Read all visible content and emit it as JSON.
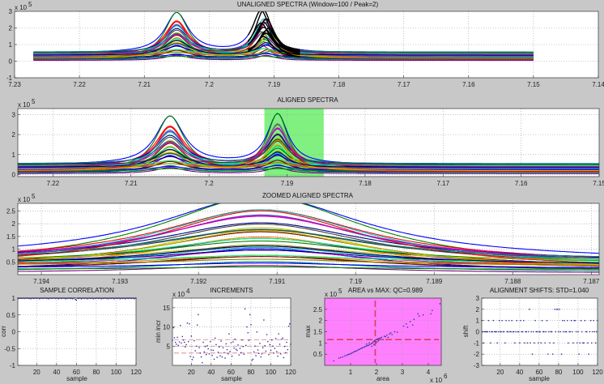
{
  "chart_data": [
    {
      "id": "unaligned",
      "type": "line",
      "title": "UNALIGNED SPECTRA (Window=100 / Peak=2)",
      "xlim": [
        7.23,
        7.14
      ],
      "ylim": [
        -1,
        3
      ],
      "x_reversed": true,
      "grid": true,
      "xticks": [
        "7.23",
        "7.22",
        "7.21",
        "7.2",
        "7.19",
        "7.18",
        "7.17",
        "7.16",
        "7.15",
        "7.14"
      ],
      "xtick_values": [
        7.23,
        7.22,
        7.21,
        7.2,
        7.19,
        7.18,
        7.17,
        7.16,
        7.15,
        7.14
      ],
      "yticks": [
        "-1",
        "0",
        "1",
        "2",
        "3"
      ],
      "ytick_values": [
        -1,
        0,
        1,
        2,
        3
      ],
      "y_multiplier": {
        "base": "x 10",
        "exp": "5"
      },
      "data_range": [
        7.2271,
        7.15
      ],
      "highlight_color": "#000000"
    },
    {
      "id": "aligned",
      "type": "line",
      "title": "ALIGNED SPECTRA",
      "xlim": [
        7.2245,
        7.15
      ],
      "ylim": [
        -0.1,
        3.3
      ],
      "x_reversed": true,
      "grid": true,
      "xticks": [
        "7.22",
        "7.21",
        "7.2",
        "7.19",
        "7.18",
        "7.17",
        "7.16",
        "7.15"
      ],
      "xtick_values": [
        7.22,
        7.21,
        7.2,
        7.19,
        7.18,
        7.17,
        7.16,
        7.15
      ],
      "yticks": [
        "0",
        "1",
        "2",
        "3"
      ],
      "ytick_values": [
        0,
        1,
        2,
        3
      ],
      "y_multiplier": {
        "base": "x 10",
        "exp": "5"
      },
      "data_range": [
        7.2245,
        7.15
      ],
      "window": [
        7.1929,
        7.1853
      ],
      "window_color": "#80f080"
    },
    {
      "id": "zoomed",
      "type": "line",
      "title": "ZOOMED ALIGNED SPECTRA",
      "xlim": [
        7.1943,
        7.1869
      ],
      "ylim": [
        0,
        2.8
      ],
      "x_reversed": true,
      "grid": true,
      "xticks": [
        "7.194",
        "7.193",
        "7.192",
        "7.191",
        "7.19",
        "7.189",
        "7.188",
        "7.187"
      ],
      "xtick_values": [
        7.194,
        7.193,
        7.192,
        7.191,
        7.19,
        7.189,
        7.188,
        7.187
      ],
      "yticks": [
        "0.5",
        "1",
        "1.5",
        "2",
        "2.5"
      ],
      "ytick_values": [
        0.5,
        1,
        1.5,
        2,
        2.5
      ],
      "y_multiplier": {
        "base": "x 10",
        "exp": "5"
      },
      "data_range": [
        7.1943,
        7.1869
      ]
    },
    {
      "id": "correlation",
      "type": "scatter",
      "title": "SAMPLE CORRELATION",
      "xlabel": "sample",
      "ylabel": "corr",
      "xlim": [
        1,
        120
      ],
      "ylim": [
        -1,
        1
      ],
      "grid": true,
      "xticks": [
        "20",
        "40",
        "60",
        "80",
        "100",
        "120"
      ],
      "xtick_values": [
        20,
        40,
        60,
        80,
        100,
        120
      ],
      "yticks": [
        "-1",
        "-0.5",
        "0",
        "0.5",
        "1"
      ],
      "ytick_values": [
        -1,
        -0.5,
        0,
        0.5,
        1
      ],
      "color": "#3030a0",
      "values": [
        1,
        0.99,
        1,
        1,
        0.99,
        1,
        1,
        0.99,
        1,
        1,
        1,
        0.99,
        1,
        0.98,
        1,
        1,
        0.99,
        1,
        1,
        0.99,
        1,
        1,
        0.98,
        1,
        1,
        0.99,
        1,
        1,
        1,
        0.99,
        1,
        0.98,
        1,
        1,
        0.99,
        1,
        1,
        1,
        0.99,
        1,
        1,
        0.98,
        1,
        1,
        0.99,
        1,
        1,
        1,
        0.98,
        1,
        0.99,
        1,
        1,
        0.99,
        1,
        0.98,
        1,
        1,
        0.96,
        0.94,
        1,
        0.99,
        1,
        1,
        0.98,
        1,
        1,
        0.99,
        1,
        1,
        0.98,
        1,
        1,
        0.99,
        1,
        1,
        0.98,
        1,
        0.99,
        1,
        1,
        0.99,
        1,
        1,
        0.98,
        1,
        0.99,
        1,
        1,
        0.99,
        1,
        0.98,
        1,
        1,
        0.99,
        1,
        1,
        0.98,
        1,
        1,
        0.99,
        1,
        1,
        0.98,
        1,
        0.99,
        1,
        1,
        0.98,
        1,
        1,
        0.99,
        1,
        1,
        0.99,
        1,
        1,
        0.98,
        1,
        1
      ]
    },
    {
      "id": "increments",
      "type": "scatter",
      "title": "INCREMENTS",
      "xlabel": "sample",
      "ylabel": "min incr",
      "xlim": [
        1,
        120
      ],
      "ylim": [
        0,
        17.5
      ],
      "grid": true,
      "xticks": [
        "20",
        "40",
        "60",
        "80",
        "100",
        "120"
      ],
      "xtick_values": [
        20,
        40,
        60,
        80,
        100,
        120
      ],
      "yticks": [
        "5",
        "10",
        "15"
      ],
      "ytick_values": [
        5,
        10,
        15
      ],
      "y_multiplier": {
        "base": "x 10",
        "exp": "4"
      },
      "color": "#3030a0",
      "reference_lines": [
        3.2,
        5.0,
        6.7
      ],
      "reference_color": "#d08080",
      "values": [
        6.5,
        9.8,
        7.2,
        6.0,
        5.5,
        7.3,
        5.2,
        6.1,
        10.4,
        5.8,
        7.5,
        6.6,
        6.0,
        4.8,
        5.4,
        11.0,
        6.2,
        10.8,
        2.3,
        7.6,
        1.5,
        2.1,
        6.4,
        3.8,
        5.0,
        10.5,
        13.2,
        4.6,
        3.2,
        2.2,
        0.7,
        6.0,
        3.5,
        4.9,
        2.8,
        5.1,
        4.3,
        3.0,
        6.2,
        4.0,
        2.6,
        3.9,
        1.6,
        7.1,
        5.4,
        2.1,
        3.4,
        4.8,
        2.5,
        6.3,
        2.2,
        4.6,
        3.3,
        1.9,
        5.6,
        4.1,
        3.0,
        8.2,
        3.6,
        5.9,
        2.4,
        6.1,
        4.5,
        6.8,
        4.2,
        3.9,
        5.3,
        2.7,
        4.4,
        3.3,
        6.6,
        4.9,
        2.9,
        14.7,
        5.2,
        10.0,
        8.5,
        6.5,
        13.2,
        10.6,
        1.3,
        1.6,
        3.5,
        5.0,
        2.5,
        8.7,
        4.0,
        3.1,
        5.7,
        2.2,
        3.0,
        4.6,
        11.8,
        5.1,
        3.7,
        8.0,
        6.2,
        2.8,
        5.4,
        3.9,
        6.6,
        5.0,
        3.2,
        4.4,
        7.0,
        3.6,
        2.4,
        8.2,
        5.5,
        3.0,
        6.8,
        7.1,
        2.0,
        4.9,
        3.3,
        6.0,
        4.1,
        10.2,
        10.8,
        5.5
      ]
    },
    {
      "id": "area-vs-max",
      "type": "scatter",
      "title": "AREA vs MAX: QC=0.989",
      "xlabel": "area",
      "ylabel": "max",
      "xlim": [
        0,
        4.5
      ],
      "ylim": [
        0,
        3
      ],
      "grid": true,
      "xticks": [
        "1",
        "2",
        "3",
        "4"
      ],
      "xtick_values": [
        1,
        2,
        3,
        4
      ],
      "yticks": [
        "0.5",
        "1",
        "1.5",
        "2",
        "2.5"
      ],
      "ytick_values": [
        0.5,
        1,
        1.5,
        2,
        2.5
      ],
      "x_multiplier": {
        "base": "x 10",
        "exp": "6"
      },
      "y_multiplier": {
        "base": "x 10",
        "exp": "5"
      },
      "background": "#ff80ff",
      "color": "#3030a0",
      "threshold_x": 1.95,
      "threshold_y": 1.15,
      "threshold_color": "#e03c64",
      "points": [
        [
          0.35,
          0.2
        ],
        [
          0.55,
          0.32
        ],
        [
          0.62,
          0.35
        ],
        [
          0.7,
          0.38
        ],
        [
          0.78,
          0.42
        ],
        [
          0.85,
          0.45
        ],
        [
          0.9,
          0.48
        ],
        [
          0.95,
          0.5
        ],
        [
          1.0,
          0.52
        ],
        [
          1.05,
          0.55
        ],
        [
          1.1,
          0.58
        ],
        [
          1.15,
          0.62
        ],
        [
          1.2,
          0.63
        ],
        [
          1.25,
          0.66
        ],
        [
          1.3,
          0.7
        ],
        [
          1.35,
          0.72
        ],
        [
          1.4,
          0.75
        ],
        [
          1.45,
          0.78
        ],
        [
          1.5,
          0.8
        ],
        [
          1.55,
          0.83
        ],
        [
          1.6,
          0.86
        ],
        [
          1.62,
          0.95
        ],
        [
          1.65,
          0.88
        ],
        [
          1.7,
          0.9
        ],
        [
          1.72,
          1.0
        ],
        [
          1.75,
          0.93
        ],
        [
          1.8,
          0.97
        ],
        [
          1.82,
          0.85
        ],
        [
          1.85,
          1.0
        ],
        [
          1.88,
          1.05
        ],
        [
          1.9,
          0.92
        ],
        [
          1.92,
          1.1
        ],
        [
          1.95,
          1.08
        ],
        [
          1.98,
          1.0
        ],
        [
          2.0,
          1.15
        ],
        [
          2.02,
          1.05
        ],
        [
          2.05,
          1.18
        ],
        [
          2.08,
          1.1
        ],
        [
          2.1,
          1.2
        ],
        [
          2.15,
          1.22
        ],
        [
          2.2,
          1.25
        ],
        [
          2.25,
          1.15
        ],
        [
          2.3,
          1.3
        ],
        [
          2.35,
          1.28
        ],
        [
          2.4,
          1.35
        ],
        [
          2.45,
          1.25
        ],
        [
          2.5,
          1.4
        ],
        [
          2.55,
          1.45
        ],
        [
          2.6,
          1.38
        ],
        [
          2.7,
          1.5
        ],
        [
          2.8,
          1.48
        ],
        [
          3.05,
          1.75
        ],
        [
          3.15,
          1.85
        ],
        [
          3.2,
          1.7
        ],
        [
          3.3,
          1.95
        ],
        [
          3.4,
          1.8
        ],
        [
          3.45,
          2.05
        ],
        [
          3.6,
          2.3
        ],
        [
          3.65,
          2.2
        ],
        [
          3.8,
          2.25
        ],
        [
          4.1,
          2.3
        ],
        [
          4.15,
          2.45
        ],
        [
          4.45,
          2.75
        ]
      ]
    },
    {
      "id": "shifts",
      "type": "scatter",
      "title": "ALIGNMENT SHIFTS: STD=1.040",
      "xlabel": "sample",
      "ylabel": "shift",
      "xlim": [
        1,
        120
      ],
      "ylim": [
        -3,
        3
      ],
      "grid": true,
      "xticks": [
        "20",
        "40",
        "60",
        "80",
        "100",
        "120"
      ],
      "xtick_values": [
        20,
        40,
        60,
        80,
        100,
        120
      ],
      "yticks": [
        "-3",
        "-2",
        "-1",
        "0",
        "1",
        "2",
        "3"
      ],
      "ytick_values": [
        -3,
        -2,
        -1,
        0,
        1,
        2,
        3
      ],
      "color": "#3030a0",
      "values": [
        1,
        0,
        -1,
        0,
        0,
        0,
        0,
        1,
        0,
        -1,
        0,
        0,
        1,
        0,
        0,
        0,
        -1,
        0,
        1,
        0,
        0,
        1,
        0,
        0,
        -1,
        1,
        0,
        0,
        1,
        0,
        0,
        1,
        0,
        0,
        -1,
        0,
        1,
        0,
        0,
        -1,
        1,
        0,
        0,
        1,
        -1,
        0,
        0,
        -1,
        0,
        2,
        -1,
        0,
        -2,
        0,
        -1,
        1,
        0,
        0,
        -1,
        0,
        0,
        -1,
        1,
        0,
        0,
        -1,
        0,
        1,
        -2,
        0,
        -1,
        0,
        0,
        -2,
        -1,
        2,
        0,
        2,
        2,
        0,
        2,
        0,
        -2,
        1,
        0,
        1,
        0,
        0,
        1,
        -1,
        0,
        0,
        1,
        0,
        -1,
        1,
        1,
        0,
        -1,
        0,
        -2,
        -1,
        1,
        0,
        -1,
        -1,
        1,
        0,
        0,
        -1,
        -2,
        0,
        1,
        -1,
        0,
        1,
        0,
        -1,
        0,
        1
      ]
    }
  ],
  "spectra": {
    "peak_centers": [
      7.205,
      7.1912
    ],
    "shift_unit": 0.0004,
    "colors": [
      "#0000ff",
      "#008000",
      "#ff0000",
      "#00bfbf",
      "#bf00bf",
      "#bfbf00",
      "#404040",
      "#000080",
      "#800000",
      "#ff8000",
      "#008080",
      "#800080",
      "#00ff80",
      "#808000"
    ],
    "series": [
      {
        "base": 0.5,
        "h1": 2.4,
        "h2": 2.5,
        "shift": 2
      },
      {
        "base": 0.2,
        "h1": 2.7,
        "h2": 2.8,
        "shift": 1
      },
      {
        "base": 0.4,
        "h1": 2.0,
        "h2": 2.1,
        "shift": 0
      },
      {
        "base": 0.3,
        "h1": 1.9,
        "h2": 2.0,
        "shift": 1
      },
      {
        "base": 0.45,
        "h1": 1.7,
        "h2": 1.8,
        "shift": 2
      },
      {
        "base": 0.1,
        "h1": 1.6,
        "h2": 1.7,
        "shift": 0
      },
      {
        "base": 0.35,
        "h1": 1.5,
        "h2": 1.6,
        "shift": -1
      },
      {
        "base": 0.5,
        "h1": 1.45,
        "h2": 1.5,
        "shift": 1
      },
      {
        "base": 0.25,
        "h1": 1.3,
        "h2": 1.4,
        "shift": 0
      },
      {
        "base": 0.15,
        "h1": 1.25,
        "h2": 1.3,
        "shift": 1
      },
      {
        "base": 0.55,
        "h1": 1.1,
        "h2": 1.2,
        "shift": 2
      },
      {
        "base": 0.3,
        "h1": 1.05,
        "h2": 1.1,
        "shift": 0
      },
      {
        "base": 0.4,
        "h1": 0.95,
        "h2": 1.0,
        "shift": -1
      },
      {
        "base": 0.2,
        "h1": 0.9,
        "h2": 0.95,
        "shift": 1
      },
      {
        "base": 0.1,
        "h1": 0.85,
        "h2": 0.9,
        "shift": 0
      },
      {
        "base": 0.45,
        "h1": 0.8,
        "h2": 0.85,
        "shift": 1
      },
      {
        "base": 0.3,
        "h1": 0.75,
        "h2": 0.8,
        "shift": 0
      },
      {
        "base": 0.35,
        "h1": 0.7,
        "h2": 0.7,
        "shift": -1
      },
      {
        "base": 0.25,
        "h1": 0.65,
        "h2": 0.7,
        "shift": 2
      },
      {
        "base": 0.5,
        "h1": 0.6,
        "h2": 0.6,
        "shift": 0
      },
      {
        "base": 0.15,
        "h1": 0.55,
        "h2": 0.6,
        "shift": 1
      },
      {
        "base": 0.4,
        "h1": 0.5,
        "h2": 0.55,
        "shift": 0
      },
      {
        "base": 0.2,
        "h1": 0.45,
        "h2": 0.5,
        "shift": -1
      },
      {
        "base": 0.3,
        "h1": 0.4,
        "h2": 0.45,
        "shift": 1
      },
      {
        "base": 0.1,
        "h1": 0.35,
        "h2": 0.4,
        "shift": 0
      },
      {
        "base": 0.05,
        "h1": 0.3,
        "h2": 0.3,
        "shift": 0
      },
      {
        "base": 0.45,
        "h1": 0.25,
        "h2": 0.3,
        "shift": 1
      },
      {
        "base": 0.35,
        "h1": 0.2,
        "h2": 0.25,
        "shift": -2
      },
      {
        "base": 0.25,
        "h1": 0.15,
        "h2": 0.2,
        "shift": 0
      },
      {
        "base": 0.2,
        "h1": 0.1,
        "h2": 0.1,
        "shift": 1
      },
      {
        "base": 0.15,
        "h1": 2.2,
        "h2": 2.3,
        "shift": 0
      },
      {
        "base": 0.3,
        "h1": 1.8,
        "h2": 2.2,
        "shift": 1
      },
      {
        "base": 0.4,
        "h1": 1.2,
        "h2": 1.9,
        "shift": 0
      },
      {
        "base": 0.2,
        "h1": 1.0,
        "h2": 1.5,
        "shift": -1
      },
      {
        "base": 0.5,
        "h1": 0.55,
        "h2": 1.25,
        "shift": 1
      },
      {
        "base": 0.35,
        "h1": 0.9,
        "h2": 0.75,
        "shift": 0
      }
    ]
  }
}
